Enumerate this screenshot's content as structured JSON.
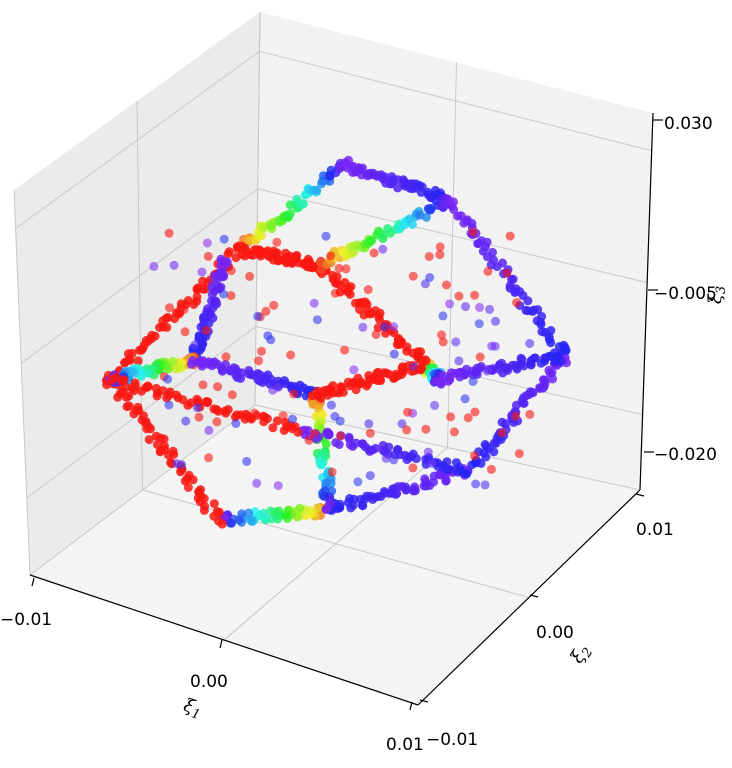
{
  "chart_data": {
    "type": "scatter",
    "projection": "3d",
    "title": "",
    "colormap": "rainbow",
    "colors": {
      "pane_left": "#ebebeb",
      "pane_back": "#f2f2f2",
      "pane_floor": "#f4f4f4",
      "grid": "#c8c8c8",
      "axis_line": "#000000"
    },
    "axes": {
      "x": {
        "label": "ξ1",
        "label_main": "ξ",
        "label_sub": "1",
        "range": [
          -0.01,
          0.01
        ],
        "ticks": [
          "−0.01",
          "0.00",
          "0.01"
        ]
      },
      "y": {
        "label": "ξ2",
        "label_main": "ξ",
        "label_sub": "2",
        "range": [
          -0.01,
          0.01
        ],
        "ticks": [
          "−0.01",
          "0.00",
          "0.01"
        ]
      },
      "z": {
        "label": "ξ3",
        "label_main": "ξ",
        "label_sub": "3",
        "ticks": [
          "−0.020",
          "−0.005",
          "0.030"
        ]
      }
    },
    "grid": true,
    "legend": "none",
    "point_clouds": [
      {
        "shape": "squashed-cube-wireframe",
        "side_a_color": "red",
        "side_b_color": "violet",
        "center": [
          0.0,
          0.0,
          0.005
        ],
        "points_estimated": 2400
      }
    ]
  }
}
